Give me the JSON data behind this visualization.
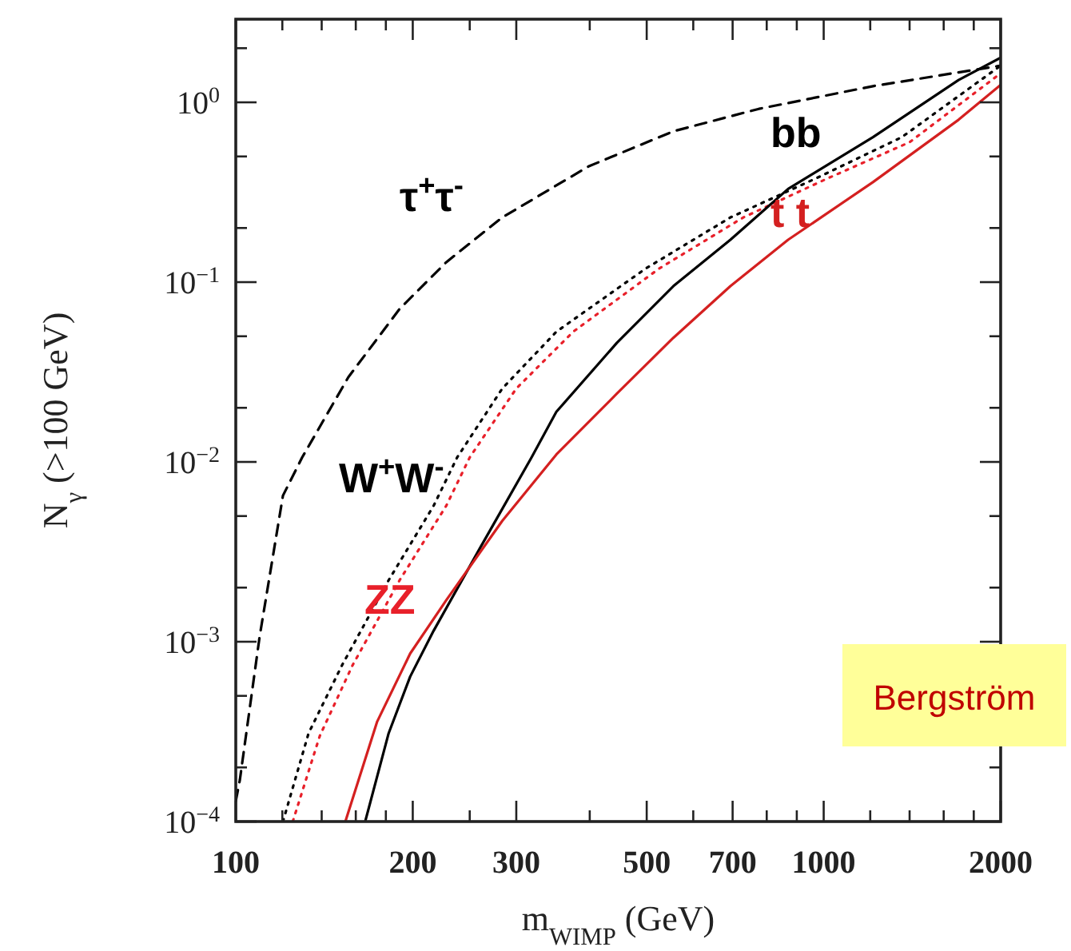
{
  "chart_data": {
    "type": "line",
    "xlabel": "m$_{WIMP}$ (GeV)",
    "ylabel": "N$_{γ}$ (>100 GeV)",
    "log": "xy",
    "xlim": [
      100,
      2000
    ],
    "ylim": [
      0.0001,
      2.9
    ],
    "xticks": [
      100,
      {
        "value": 120,
        "label": null
      },
      {
        "value": 140,
        "label": null
      },
      {
        "value": 160,
        "label": null
      },
      {
        "value": 180,
        "label": null
      },
      200,
      {
        "value": 250,
        "label": null
      },
      300,
      {
        "value": 400,
        "label": null
      },
      500,
      {
        "value": 600,
        "label": null
      },
      700,
      {
        "value": 800,
        "label": null
      },
      {
        "value": 900,
        "label": null
      },
      1000,
      {
        "value": 1200,
        "label": null
      },
      {
        "value": 1400,
        "label": null
      },
      {
        "value": 1600,
        "label": null
      },
      {
        "value": 1800,
        "label": null
      },
      2000
    ],
    "yticks": [
      {
        "value": 0.0001,
        "label": "10$^{−4}$"
      },
      {
        "value": 0.0002,
        "label": null
      },
      {
        "value": 0.0005,
        "label": null
      },
      {
        "value": 0.001,
        "label": "10$^{−3}$"
      },
      {
        "value": 0.002,
        "label": null
      },
      {
        "value": 0.005,
        "label": null
      },
      {
        "value": 0.01,
        "label": "10$^{−2}$"
      },
      {
        "value": 0.02,
        "label": null
      },
      {
        "value": 0.05,
        "label": null
      },
      {
        "value": 0.1,
        "label": "10$^{−1}$"
      },
      {
        "value": 0.2,
        "label": null
      },
      {
        "value": 0.5,
        "label": null
      },
      {
        "value": 1,
        "label": "10$^{0}$"
      },
      {
        "value": 2,
        "label": null
      }
    ],
    "series": [
      {
        "name": "τ$^{+}$τ$^{-}$",
        "color": "#000000",
        "line_style": "dashed",
        "x": [
          100,
          101.6,
          109.8,
          120.3,
          129.7,
          155.4,
          190,
          228,
          284,
          398,
          555,
          776,
          1213,
          2000
        ],
        "values": [
          0.00013,
          0.00017,
          0.00107,
          0.0065,
          0.0106,
          0.0296,
          0.071,
          0.129,
          0.229,
          0.44,
          0.69,
          0.92,
          1.23,
          1.6
        ]
      },
      {
        "name": "W$^{+}$W$^{-}$",
        "color": "#000000",
        "line_style": "dotted",
        "x": [
          120.3,
          133,
          151.6,
          182,
          217,
          238,
          284,
          351,
          498,
          694,
          974,
          1358,
          2000
        ],
        "values": [
          0.0001,
          0.00031,
          0.00074,
          0.0022,
          0.0057,
          0.0106,
          0.0256,
          0.053,
          0.119,
          0.229,
          0.38,
          0.64,
          1.6
        ]
      },
      {
        "name": "ZZ",
        "color": "#e8202a",
        "line_style": "dotted",
        "x": [
          125,
          139,
          158,
          190,
          228,
          250,
          300,
          375,
          525,
          730,
          1020,
          1400,
          2000
        ],
        "values": [
          0.0001,
          0.0003,
          0.00074,
          0.0022,
          0.0057,
          0.0106,
          0.0256,
          0.053,
          0.119,
          0.229,
          0.38,
          0.6,
          1.45
        ]
      },
      {
        "name": "bb",
        "color": "#000000",
        "line_style": "solid",
        "x": [
          166,
          182,
          198,
          217,
          260,
          318,
          351,
          445,
          555,
          694,
          870,
          1213,
          1696,
          2000
        ],
        "values": [
          0.0001,
          0.00031,
          0.00064,
          0.00115,
          0.0033,
          0.0105,
          0.019,
          0.046,
          0.095,
          0.172,
          0.33,
          0.64,
          1.33,
          1.77
        ]
      },
      {
        "name": "t t",
        "color": "#d42020",
        "line_style": "solid",
        "x": [
          153.6,
          174,
          198,
          228,
          284,
          351,
          445,
          555,
          694,
          870,
          1213,
          1696,
          2000
        ],
        "values": [
          0.0001,
          0.00036,
          0.00086,
          0.0017,
          0.0047,
          0.011,
          0.024,
          0.049,
          0.095,
          0.172,
          0.36,
          0.8,
          1.25
        ]
      }
    ],
    "annotations": [
      "Bergström"
    ]
  }
}
